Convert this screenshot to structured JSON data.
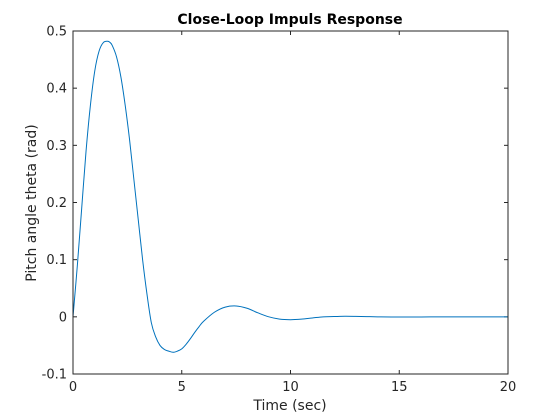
{
  "chart_data": {
    "type": "line",
    "title": "Close-Loop Impuls Response",
    "xlabel": "Time (sec)",
    "ylabel": "Pitch angle theta (rad)",
    "xlim": [
      0,
      20
    ],
    "ylim": [
      -0.1,
      0.5
    ],
    "xticks": [
      0,
      5,
      10,
      15,
      20
    ],
    "xtick_labels": [
      "0",
      "5",
      "10",
      "15",
      "20"
    ],
    "yticks": [
      -0.1,
      0,
      0.1,
      0.2,
      0.3,
      0.4,
      0.5
    ],
    "ytick_labels": [
      "-0.1",
      "0",
      "0.1",
      "0.2",
      "0.3",
      "0.4",
      "0.5"
    ],
    "grid": false,
    "box": true,
    "line_color": "#0072BD",
    "axis_color": "#262626",
    "series": [
      {
        "name": "",
        "x": [
          0,
          0.2,
          0.4,
          0.6,
          0.8,
          1.0,
          1.2,
          1.4,
          1.6,
          1.7,
          1.8,
          2.0,
          2.2,
          2.4,
          2.6,
          2.8,
          3.0,
          3.2,
          3.4,
          3.6,
          3.8,
          4.0,
          4.2,
          4.4,
          4.6,
          4.8,
          5.0,
          5.2,
          5.4,
          5.6,
          5.8,
          6.0,
          6.5,
          7.0,
          7.5,
          8.0,
          8.5,
          9.0,
          9.5,
          10.0,
          10.5,
          11.0,
          11.5,
          12.0,
          12.5,
          13.0,
          13.5,
          14.0,
          15.0,
          16.0,
          17.0,
          18.0,
          19.0,
          20.0
        ],
        "y": [
          0,
          0.09,
          0.19,
          0.29,
          0.37,
          0.43,
          0.465,
          0.48,
          0.482,
          0.48,
          0.475,
          0.455,
          0.42,
          0.37,
          0.31,
          0.24,
          0.17,
          0.1,
          0.04,
          -0.01,
          -0.035,
          -0.05,
          -0.057,
          -0.06,
          -0.062,
          -0.06,
          -0.056,
          -0.048,
          -0.038,
          -0.027,
          -0.017,
          -0.008,
          0.008,
          0.017,
          0.019,
          0.015,
          0.007,
          0.0,
          -0.004,
          -0.005,
          -0.004,
          -0.002,
          0.0,
          0.0005,
          0.001,
          0.0008,
          0.0004,
          0.0,
          -0.0003,
          -0.0002,
          0.0,
          0.0,
          0.0,
          0.0
        ]
      }
    ]
  }
}
